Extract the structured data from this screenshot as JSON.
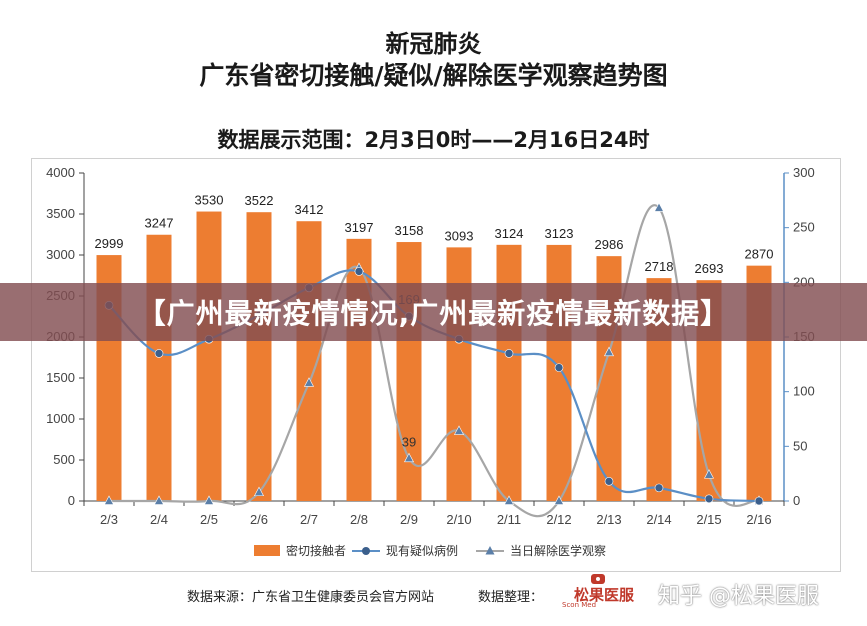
{
  "header": {
    "title_line1": "新冠肺炎",
    "title_line2": "广东省密切接触/疑似/解除医学观察趋势图",
    "range": "数据展示范围：2月3日0时——2月16日24时"
  },
  "overlay_text": "【广州最新疫情情况,广州最新疫情最新数据】",
  "footer": {
    "source": "数据来源：广东省卫生健康委员会官方网站",
    "organizer": "数据整理：",
    "logo_text": "松果医服",
    "logo_sub": "Scon Med",
    "watermark": "知乎 @松果医服"
  },
  "colors": {
    "bar": "#ED7D31",
    "suspected": "#5B8FC6",
    "released": "#A6A6A6",
    "marker_dark": "#3B5F8C"
  },
  "chart_data": {
    "type": "bar",
    "categories": [
      "2/3",
      "2/4",
      "2/5",
      "2/6",
      "2/7",
      "2/8",
      "2/9",
      "2/10",
      "2/11",
      "2/12",
      "2/13",
      "2/14",
      "2/15",
      "2/16"
    ],
    "y_left": {
      "min": 0,
      "max": 4000,
      "ticks": [
        0,
        500,
        1000,
        1500,
        2000,
        2500,
        3000,
        3500,
        4000
      ]
    },
    "y_right": {
      "min": 0,
      "max": 300,
      "ticks": [
        0,
        50,
        100,
        150,
        200,
        250,
        300
      ]
    },
    "legend_position": "bottom",
    "grid": false,
    "series": [
      {
        "name": "密切接触者",
        "type": "bar",
        "axis": "left",
        "values": [
          2999,
          3247,
          3530,
          3522,
          3412,
          3197,
          3158,
          3093,
          3124,
          3123,
          2986,
          2718,
          2693,
          2870
        ],
        "labels": [
          "2999",
          "3247",
          "3530",
          "3522",
          "3412",
          "3197",
          "3158",
          "3093",
          "3124",
          "3123",
          "2986",
          "2718",
          "2693",
          "2870"
        ]
      },
      {
        "name": "现有疑似病例",
        "type": "line",
        "axis": "right",
        "values": [
          179,
          135,
          148,
          170,
          195,
          210,
          169,
          148,
          135,
          122,
          18,
          12,
          2,
          0
        ],
        "labels": [
          "",
          "",
          "",
          "",
          "",
          "",
          "169",
          "",
          "",
          "",
          "",
          "",
          "",
          ""
        ]
      },
      {
        "name": "当日解除医学观察",
        "type": "line",
        "axis": "right",
        "values": [
          0,
          0,
          0,
          8,
          108,
          213,
          39,
          64,
          0,
          0,
          136,
          268,
          24,
          0
        ],
        "labels": [
          "",
          "",
          "",
          "",
          "",
          "",
          "39",
          "",
          "",
          "",
          "",
          "",
          "",
          ""
        ]
      }
    ]
  }
}
